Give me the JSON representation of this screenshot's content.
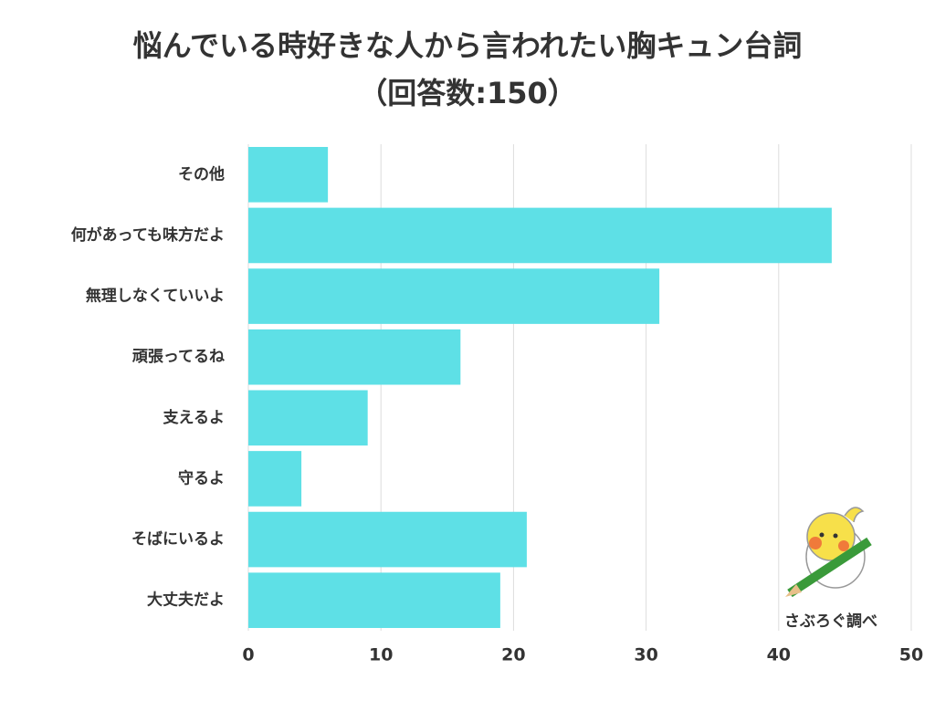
{
  "chart_data": {
    "type": "bar",
    "orientation": "horizontal",
    "title": "悩んでいる時好きな人から言われたい胸キュン台詞",
    "subtitle": "（回答数:150）",
    "categories": [
      "その他",
      "何があっても味方だよ",
      "無理しなくていいよ",
      "頑張ってるね",
      "支えるよ",
      "守るよ",
      "そばにいるよ",
      "大丈夫だよ"
    ],
    "values": [
      6,
      44,
      31,
      16,
      9,
      4,
      21,
      19
    ],
    "color": "#5ee0e6",
    "xlim": [
      0,
      50
    ],
    "xticks": [
      0,
      10,
      20,
      30,
      40,
      50
    ],
    "grid": true,
    "source": "さぶろぐ調べ"
  }
}
